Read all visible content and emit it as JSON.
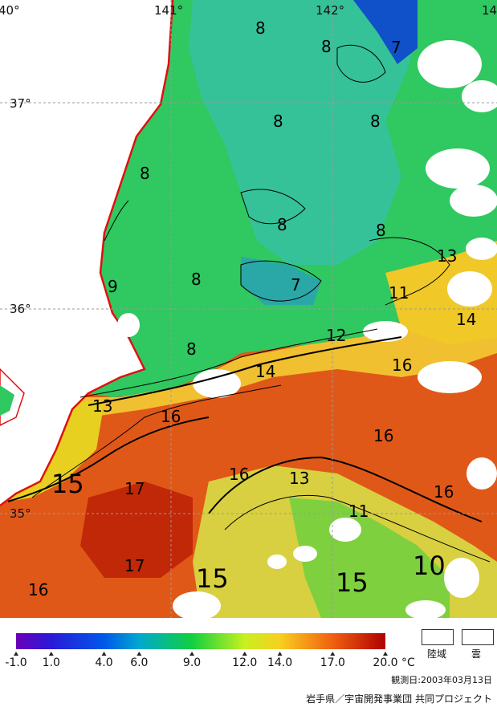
{
  "map": {
    "grid_labels": {
      "lon": [
        "40°",
        "141°",
        "142°",
        "14"
      ],
      "lat": [
        "37°",
        "36°",
        "35°"
      ]
    },
    "isotherm_labels": [
      {
        "text": "8"
      },
      {
        "text": "8"
      },
      {
        "text": "7"
      },
      {
        "text": "8"
      },
      {
        "text": "8"
      },
      {
        "text": "8"
      },
      {
        "text": "8"
      },
      {
        "text": "8"
      },
      {
        "text": "8"
      },
      {
        "text": "7"
      },
      {
        "text": "9"
      },
      {
        "text": "8"
      },
      {
        "text": "13"
      },
      {
        "text": "11"
      },
      {
        "text": "12"
      },
      {
        "text": "14"
      },
      {
        "text": "14"
      },
      {
        "text": "16"
      },
      {
        "text": "13"
      },
      {
        "text": "16"
      },
      {
        "text": "16"
      },
      {
        "text": "15"
      },
      {
        "text": "17"
      },
      {
        "text": "16"
      },
      {
        "text": "13"
      },
      {
        "text": "16"
      },
      {
        "text": "11"
      },
      {
        "text": "17"
      },
      {
        "text": "15"
      },
      {
        "text": "15"
      },
      {
        "text": "10"
      },
      {
        "text": "16"
      }
    ],
    "colors": {
      "land": "#ffffff",
      "coast": "#e01010",
      "cloud": "#ffffff",
      "grid": "#9a9a9a"
    }
  },
  "legend": {
    "ticks": [
      "-1.0",
      "1.0",
      "4.0",
      "6.0",
      "9.0",
      "12.0",
      "14.0",
      "17.0",
      "20.0"
    ],
    "unit": "°C",
    "land_label": "陸域",
    "cloud_label": "雲",
    "stops": [
      {
        "value": -1.0,
        "color": "#6a00b8"
      },
      {
        "value": 1.0,
        "color": "#2a1ad8"
      },
      {
        "value": 4.0,
        "color": "#0058e8"
      },
      {
        "value": 6.0,
        "color": "#00a8d0"
      },
      {
        "value": 9.0,
        "color": "#10d040"
      },
      {
        "value": 12.0,
        "color": "#c8f020"
      },
      {
        "value": 14.0,
        "color": "#f8d020"
      },
      {
        "value": 17.0,
        "color": "#f06010"
      },
      {
        "value": 20.0,
        "color": "#b00000"
      }
    ]
  },
  "footer": {
    "observation_date": "観測日:2003年03月13日",
    "credit": "岩手県／宇宙開発事業団 共同プロジェクト"
  }
}
